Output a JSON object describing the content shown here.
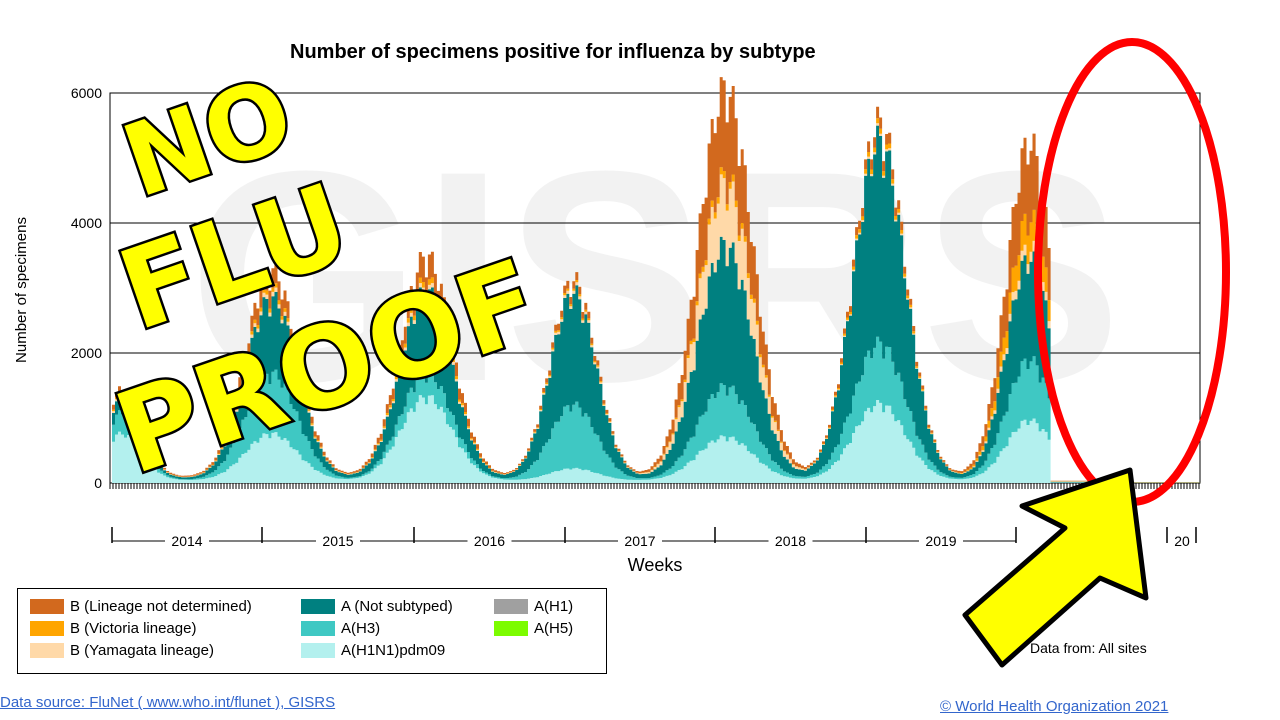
{
  "chart_data": {
    "type": "area",
    "title": "Number of specimens positive for influenza by subtype",
    "xlabel": "Weeks",
    "ylabel": "Number of specimens",
    "ylim": [
      0,
      6000
    ],
    "yticks": [
      "0",
      "2000",
      "4000",
      "6000"
    ],
    "year_labels": [
      "2014",
      "2015",
      "2016",
      "2017",
      "2018",
      "2019",
      "20"
    ],
    "watermark": "GISRS",
    "series": [
      {
        "name": "A(H1N1)pdm09",
        "color": "#b3f0ee"
      },
      {
        "name": "A(H3)",
        "color": "#3fc8c3"
      },
      {
        "name": "A (Not subtyped)",
        "color": "#008080"
      },
      {
        "name": "A(H1)",
        "color": "#a0a0a0"
      },
      {
        "name": "A(H5)",
        "color": "#7cfc00"
      },
      {
        "name": "B (Yamagata lineage)",
        "color": "#ffd9a8"
      },
      {
        "name": "B (Victoria lineage)",
        "color": "#ffa500"
      },
      {
        "name": "B (Lineage not determined)",
        "color": "#d2691e"
      }
    ],
    "seasons": [
      {
        "year": "2014",
        "peak": 1300,
        "h1": 700,
        "h3": 300,
        "ns": 180,
        "y": 30,
        "v": 20,
        "b": 70
      },
      {
        "year": "2015",
        "peak": 3100,
        "h1": 700,
        "h3": 900,
        "ns": 1100,
        "y": 60,
        "v": 60,
        "b": 280
      },
      {
        "year": "2016",
        "peak": 3300,
        "h1": 1250,
        "h3": 350,
        "ns": 1200,
        "y": 60,
        "v": 80,
        "b": 360
      },
      {
        "year": "2017",
        "peak": 2950,
        "h1": 180,
        "h3": 950,
        "ns": 1650,
        "y": 40,
        "v": 30,
        "b": 100
      },
      {
        "year": "2018",
        "peak": 5800,
        "h1": 650,
        "h3": 750,
        "ns": 2100,
        "y": 900,
        "v": 100,
        "b": 1300
      },
      {
        "year": "2019",
        "peak": 5300,
        "h1": 1150,
        "h3": 900,
        "ns": 3000,
        "y": 30,
        "v": 70,
        "b": 150
      },
      {
        "year": "2020",
        "peak": 5000,
        "h1": 900,
        "h3": 900,
        "ns": 1500,
        "y": 150,
        "v": 450,
        "b": 1100
      }
    ]
  },
  "legend": [
    {
      "label": "B (Lineage not determined)",
      "color": "#d2691e"
    },
    {
      "label": "B (Victoria lineage)",
      "color": "#ffa500"
    },
    {
      "label": "B (Yamagata lineage)",
      "color": "#ffd9a8"
    },
    {
      "label": "A (Not subtyped)",
      "color": "#008080"
    },
    {
      "label": "A(H3)",
      "color": "#3fc8c3"
    },
    {
      "label": "A(H1N1)pdm09",
      "color": "#b3f0ee"
    },
    {
      "label": "A(H1)",
      "color": "#a0a0a0"
    },
    {
      "label": "A(H5)",
      "color": "#7cfc00"
    }
  ],
  "overlay": {
    "lines": [
      "NO",
      "FLU",
      "PROOF"
    ],
    "text_color": "#ffff00",
    "ellipse_color": "#ff0000",
    "arrow_color": "#ffff00"
  },
  "footer": {
    "data_source": "Data source: FluNet ( www.who.int/flunet ), GISRS",
    "copyright": "© World Health Organization 2021",
    "data_from": "Data from: All sites"
  }
}
